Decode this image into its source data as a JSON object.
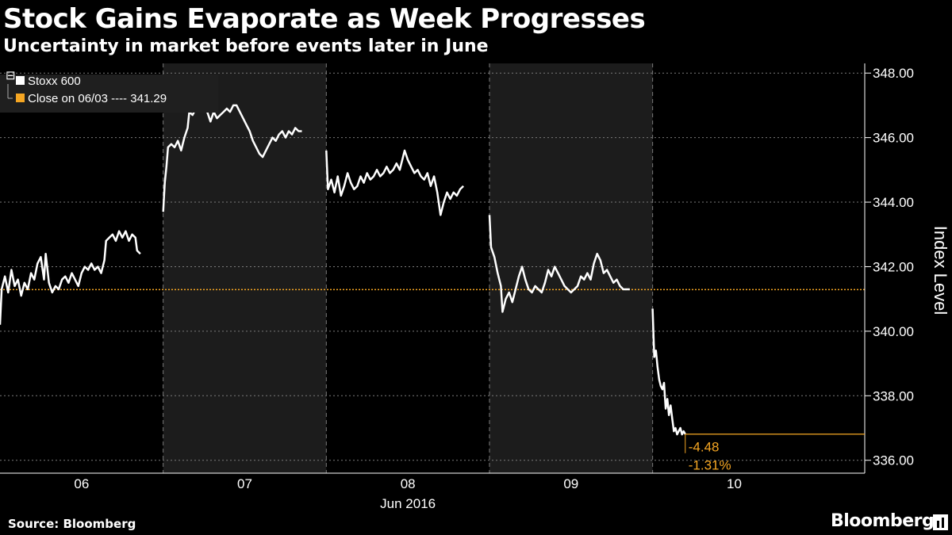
{
  "header": {
    "title": "Stock Gains Evaporate as Week Progresses",
    "subtitle": "Uncertainty in market before events later in June"
  },
  "footer": {
    "source": "Source: Bloomberg",
    "brand": "Bloomberg"
  },
  "colors": {
    "background": "#000000",
    "line": "#ffffff",
    "reference": "#f5a623",
    "shade": "#1c1c1c",
    "grid": "#7a7a7a"
  },
  "chart_data": {
    "type": "line",
    "ylabel": "Index Level",
    "xlabel": "Jun 2016",
    "ylim": [
      335.6,
      348.3
    ],
    "yticks": [
      336,
      338,
      340,
      342,
      344,
      346,
      348
    ],
    "ytick_labels": [
      "336.00",
      "338.00",
      "340.00",
      "342.00",
      "344.00",
      "346.00",
      "348.00"
    ],
    "xlim": [
      0,
      5.3
    ],
    "days": [
      {
        "label": "06",
        "start": 0,
        "end": 1,
        "shaded": false
      },
      {
        "label": "07",
        "start": 1,
        "end": 2,
        "shaded": true
      },
      {
        "label": "08",
        "start": 2,
        "end": 3,
        "shaded": false
      },
      {
        "label": "09",
        "start": 3,
        "end": 4,
        "shaded": true
      },
      {
        "label": "10",
        "start": 4,
        "end": 5,
        "shaded": false
      }
    ],
    "legend": {
      "position": "top-left",
      "entries": [
        {
          "name": "Stoxx 600",
          "color": "#ffffff"
        },
        {
          "name": "Close on 06/03 ---- 341.29",
          "color": "#f5a623"
        }
      ]
    },
    "reference_line": {
      "value": 341.29,
      "label": "Close on 06/03"
    },
    "annotations": {
      "change": "-4.48",
      "change_pct": "-1.31%",
      "last_value": 336.81
    },
    "series": [
      {
        "name": "Stoxx 600",
        "points": [
          [
            0.0,
            340.2
          ],
          [
            0.01,
            341.3
          ],
          [
            0.03,
            341.7
          ],
          [
            0.05,
            341.2
          ],
          [
            0.07,
            341.9
          ],
          [
            0.09,
            341.4
          ],
          [
            0.11,
            341.6
          ],
          [
            0.13,
            341.1
          ],
          [
            0.15,
            341.5
          ],
          [
            0.17,
            341.3
          ],
          [
            0.19,
            341.8
          ],
          [
            0.21,
            341.6
          ],
          [
            0.23,
            342.1
          ],
          [
            0.25,
            342.3
          ],
          [
            0.27,
            341.6
          ],
          [
            0.28,
            342.4
          ],
          [
            0.3,
            341.5
          ],
          [
            0.32,
            341.2
          ],
          [
            0.34,
            341.4
          ],
          [
            0.36,
            341.3
          ],
          [
            0.38,
            341.6
          ],
          [
            0.4,
            341.7
          ],
          [
            0.42,
            341.5
          ],
          [
            0.44,
            341.8
          ],
          [
            0.46,
            341.6
          ],
          [
            0.48,
            341.4
          ],
          [
            0.5,
            341.8
          ],
          [
            0.52,
            342.0
          ],
          [
            0.54,
            341.9
          ],
          [
            0.56,
            342.1
          ],
          [
            0.58,
            341.9
          ],
          [
            0.6,
            342.0
          ],
          [
            0.62,
            341.8
          ],
          [
            0.64,
            342.2
          ],
          [
            0.65,
            342.8
          ],
          [
            0.67,
            342.9
          ],
          [
            0.69,
            343.0
          ],
          [
            0.71,
            342.8
          ],
          [
            0.73,
            343.1
          ],
          [
            0.75,
            342.9
          ],
          [
            0.77,
            343.1
          ],
          [
            0.79,
            342.8
          ],
          [
            0.81,
            343.0
          ],
          [
            0.83,
            342.9
          ],
          [
            0.84,
            342.5
          ],
          [
            0.86,
            342.4
          ],
          null,
          [
            1.0,
            343.7
          ],
          [
            1.01,
            344.6
          ],
          [
            1.02,
            345.1
          ],
          [
            1.03,
            345.7
          ],
          [
            1.05,
            345.8
          ],
          [
            1.07,
            345.7
          ],
          [
            1.09,
            345.9
          ],
          [
            1.11,
            345.6
          ],
          [
            1.13,
            346.0
          ],
          [
            1.15,
            346.3
          ],
          [
            1.16,
            346.8
          ],
          [
            1.18,
            346.7
          ],
          [
            1.2,
            346.9
          ],
          [
            1.22,
            347.0
          ],
          [
            1.24,
            347.2
          ],
          [
            1.26,
            347.1
          ],
          [
            1.27,
            346.8
          ],
          [
            1.29,
            346.5
          ],
          [
            1.31,
            346.8
          ],
          [
            1.33,
            346.6
          ],
          [
            1.35,
            346.7
          ],
          [
            1.37,
            346.8
          ],
          [
            1.39,
            346.9
          ],
          [
            1.41,
            346.8
          ],
          [
            1.43,
            347.0
          ],
          [
            1.45,
            347.0
          ],
          [
            1.47,
            346.8
          ],
          [
            1.49,
            346.6
          ],
          [
            1.51,
            346.4
          ],
          [
            1.53,
            346.2
          ],
          [
            1.55,
            345.9
          ],
          [
            1.57,
            345.7
          ],
          [
            1.59,
            345.5
          ],
          [
            1.61,
            345.4
          ],
          [
            1.63,
            345.6
          ],
          [
            1.65,
            345.8
          ],
          [
            1.67,
            346.0
          ],
          [
            1.69,
            345.9
          ],
          [
            1.71,
            346.1
          ],
          [
            1.73,
            346.2
          ],
          [
            1.75,
            346.0
          ],
          [
            1.77,
            346.2
          ],
          [
            1.79,
            346.1
          ],
          [
            1.81,
            346.3
          ],
          [
            1.83,
            346.2
          ],
          [
            1.85,
            346.2
          ],
          null,
          [
            2.0,
            345.6
          ],
          [
            2.01,
            344.4
          ],
          [
            2.03,
            344.7
          ],
          [
            2.05,
            344.3
          ],
          [
            2.07,
            344.8
          ],
          [
            2.09,
            344.2
          ],
          [
            2.11,
            344.5
          ],
          [
            2.13,
            344.9
          ],
          [
            2.15,
            344.6
          ],
          [
            2.17,
            344.4
          ],
          [
            2.19,
            344.5
          ],
          [
            2.21,
            344.8
          ],
          [
            2.23,
            344.6
          ],
          [
            2.25,
            344.9
          ],
          [
            2.27,
            344.7
          ],
          [
            2.29,
            344.8
          ],
          [
            2.31,
            345.0
          ],
          [
            2.33,
            344.8
          ],
          [
            2.35,
            344.9
          ],
          [
            2.37,
            345.1
          ],
          [
            2.39,
            344.9
          ],
          [
            2.41,
            345.0
          ],
          [
            2.43,
            345.2
          ],
          [
            2.45,
            345.0
          ],
          [
            2.47,
            345.4
          ],
          [
            2.48,
            345.6
          ],
          [
            2.5,
            345.3
          ],
          [
            2.52,
            345.1
          ],
          [
            2.54,
            344.9
          ],
          [
            2.56,
            345.0
          ],
          [
            2.58,
            344.8
          ],
          [
            2.6,
            344.7
          ],
          [
            2.62,
            344.9
          ],
          [
            2.64,
            344.5
          ],
          [
            2.66,
            344.8
          ],
          [
            2.68,
            344.3
          ],
          [
            2.7,
            343.6
          ],
          [
            2.72,
            344.0
          ],
          [
            2.74,
            344.3
          ],
          [
            2.76,
            344.1
          ],
          [
            2.78,
            344.3
          ],
          [
            2.8,
            344.2
          ],
          [
            2.82,
            344.4
          ],
          [
            2.84,
            344.5
          ],
          null,
          [
            3.0,
            343.6
          ],
          [
            3.01,
            342.6
          ],
          [
            3.03,
            342.3
          ],
          [
            3.05,
            341.8
          ],
          [
            3.07,
            341.4
          ],
          [
            3.08,
            340.6
          ],
          [
            3.1,
            341.0
          ],
          [
            3.12,
            341.2
          ],
          [
            3.14,
            340.9
          ],
          [
            3.16,
            341.3
          ],
          [
            3.18,
            341.7
          ],
          [
            3.2,
            342.0
          ],
          [
            3.22,
            341.6
          ],
          [
            3.24,
            341.3
          ],
          [
            3.26,
            341.2
          ],
          [
            3.28,
            341.4
          ],
          [
            3.3,
            341.3
          ],
          [
            3.32,
            341.2
          ],
          [
            3.34,
            341.5
          ],
          [
            3.36,
            341.9
          ],
          [
            3.38,
            341.7
          ],
          [
            3.4,
            342.0
          ],
          [
            3.42,
            341.8
          ],
          [
            3.44,
            341.6
          ],
          [
            3.46,
            341.4
          ],
          [
            3.48,
            341.3
          ],
          [
            3.5,
            341.2
          ],
          [
            3.52,
            341.3
          ],
          [
            3.54,
            341.4
          ],
          [
            3.56,
            341.7
          ],
          [
            3.58,
            341.6
          ],
          [
            3.6,
            341.8
          ],
          [
            3.62,
            341.6
          ],
          [
            3.64,
            342.1
          ],
          [
            3.66,
            342.4
          ],
          [
            3.68,
            342.2
          ],
          [
            3.7,
            341.8
          ],
          [
            3.72,
            341.9
          ],
          [
            3.74,
            341.7
          ],
          [
            3.76,
            341.5
          ],
          [
            3.78,
            341.6
          ],
          [
            3.8,
            341.4
          ],
          [
            3.82,
            341.3
          ],
          [
            3.84,
            341.3
          ],
          [
            3.86,
            341.3
          ],
          null,
          [
            4.0,
            340.7
          ],
          [
            4.01,
            339.2
          ],
          [
            4.02,
            339.4
          ],
          [
            4.03,
            338.9
          ],
          [
            4.04,
            338.5
          ],
          [
            4.05,
            338.3
          ],
          [
            4.06,
            338.2
          ],
          [
            4.07,
            338.4
          ],
          [
            4.08,
            337.6
          ],
          [
            4.09,
            337.9
          ],
          [
            4.1,
            337.4
          ],
          [
            4.11,
            337.7
          ],
          [
            4.12,
            337.3
          ],
          [
            4.13,
            336.9
          ],
          [
            4.14,
            337.0
          ],
          [
            4.15,
            336.8
          ],
          [
            4.16,
            336.9
          ],
          [
            4.17,
            337.0
          ],
          [
            4.18,
            336.8
          ],
          [
            4.19,
            336.9
          ],
          [
            4.2,
            336.81
          ]
        ]
      }
    ]
  }
}
